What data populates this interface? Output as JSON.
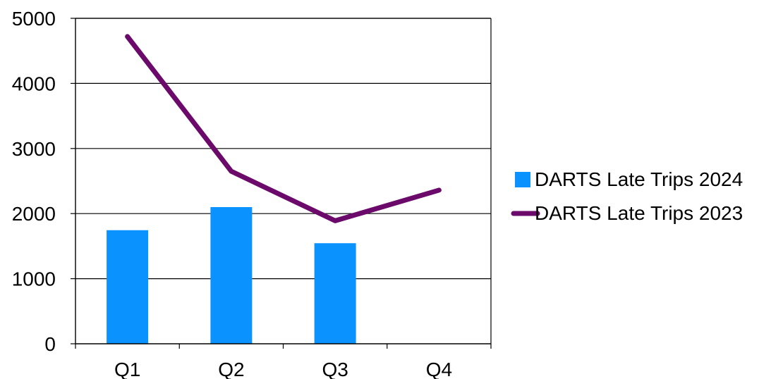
{
  "chart_data": {
    "type": "bar+line",
    "categories": [
      "Q1",
      "Q2",
      "Q3",
      "Q4"
    ],
    "series": [
      {
        "name": "DARTS Late Trips 2024",
        "type": "bar",
        "color": "#0A93FF",
        "values": [
          1745,
          2100,
          1545,
          null
        ]
      },
      {
        "name": "DARTS Late Trips 2023",
        "type": "line",
        "color": "#6B0A6B",
        "values": [
          4720,
          2650,
          1890,
          2360
        ]
      }
    ],
    "y_ticks": [
      "0",
      "1000",
      "2000",
      "3000",
      "4000",
      "5000"
    ],
    "ylim": [
      0,
      5000
    ],
    "grid": true,
    "legend_position": "right"
  }
}
